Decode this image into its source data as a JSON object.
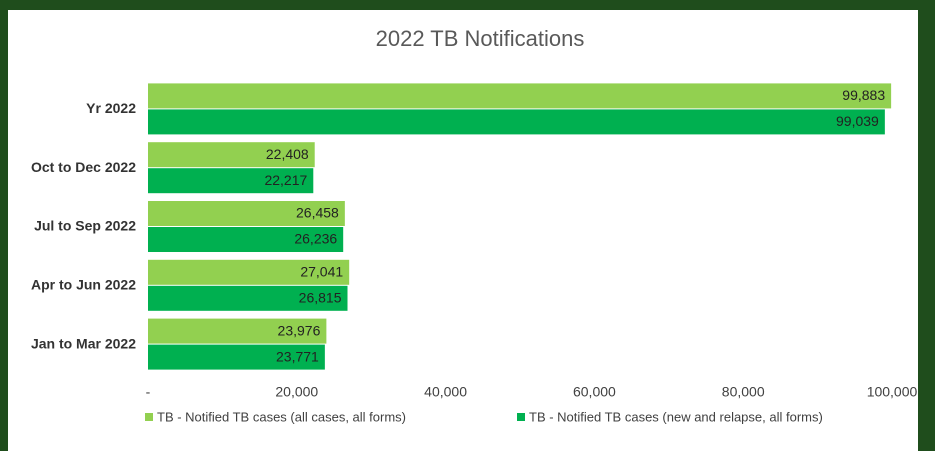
{
  "chart_data": {
    "type": "bar",
    "orientation": "horizontal",
    "title": "2022 TB Notifications",
    "categories": [
      "Yr 2022",
      "Oct to Dec 2022",
      "Jul to Sep 2022",
      "Apr to Jun 2022",
      "Jan to Mar 2022"
    ],
    "series": [
      {
        "name": "TB - Notified TB cases (all cases, all forms)",
        "color": "#92d050",
        "values": [
          99883,
          22408,
          26458,
          27041,
          23976
        ],
        "value_labels": [
          "99,883",
          "22,408",
          "26,458",
          "27,041",
          "23,976"
        ]
      },
      {
        "name": "TB - Notified TB cases (new and relapse, all forms)",
        "color": "#00b050",
        "values": [
          99039,
          22217,
          26236,
          26815,
          23771
        ],
        "value_labels": [
          "99,039",
          "22,217",
          "26,236",
          "26,815",
          "23,771"
        ]
      }
    ],
    "xlim": [
      0,
      100000
    ],
    "xticks": [
      {
        "value": 0,
        "label": "-"
      },
      {
        "value": 20000,
        "label": "20,000"
      },
      {
        "value": 40000,
        "label": "40,000"
      },
      {
        "value": 60000,
        "label": "60,000"
      },
      {
        "value": 80000,
        "label": "80,000"
      },
      {
        "value": 100000,
        "label": "100,000"
      }
    ],
    "legend": "bottom",
    "grid": false
  }
}
